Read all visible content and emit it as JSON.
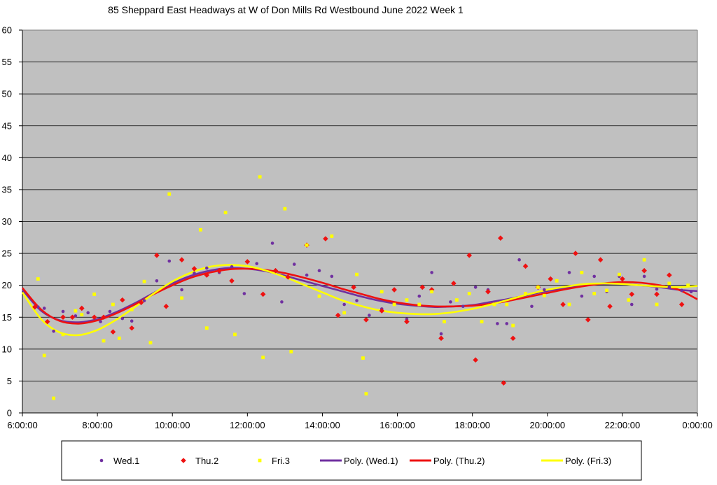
{
  "chart_data": {
    "type": "scatter",
    "title": "85 Sheppard East Headways at W of Don Mills Rd Westbound June 2022  Week 1",
    "xlabel": "",
    "ylabel": "",
    "xlim": [
      "6:00:00",
      "0:00:00"
    ],
    "ylim": [
      0,
      60
    ],
    "x_tick_labels": [
      "6:00:00",
      "8:00:00",
      "10:00:00",
      "12:00:00",
      "14:00:00",
      "16:00:00",
      "18:00:00",
      "20:00:00",
      "22:00:00",
      "0:00:00"
    ],
    "y_tick_labels": [
      "0",
      "5",
      "10",
      "15",
      "20",
      "25",
      "30",
      "35",
      "40",
      "45",
      "50",
      "55",
      "60"
    ],
    "grid": "horizontal",
    "legend_position": "bottom",
    "colors": {
      "plot_background": "#c0c0c0",
      "wed": "#7030a0",
      "thu": "#ee1111",
      "fri": "#ffff00"
    },
    "series": [
      {
        "name": "Wed.1",
        "kind": "points",
        "marker": "circle",
        "color": "#7030a0",
        "points": [
          [
            "6:25:00",
            16.6
          ],
          [
            "6:35:00",
            16.4
          ],
          [
            "6:50:00",
            12.8
          ],
          [
            "7:05:00",
            15.9
          ],
          [
            "7:25:00",
            15.2
          ],
          [
            "7:45:00",
            15.7
          ],
          [
            "8:05:00",
            14.3
          ],
          [
            "8:20:00",
            15.9
          ],
          [
            "8:40:00",
            14.8
          ],
          [
            "8:55:00",
            14.4
          ],
          [
            "9:15:00",
            17.6
          ],
          [
            "9:35:00",
            20.7
          ],
          [
            "9:55:00",
            23.8
          ],
          [
            "10:15:00",
            19.3
          ],
          [
            "10:35:00",
            21.9
          ],
          [
            "10:55:00",
            22.7
          ],
          [
            "11:15:00",
            22.0
          ],
          [
            "11:35:00",
            22.9
          ],
          [
            "11:55:00",
            18.7
          ],
          [
            "12:15:00",
            23.4
          ],
          [
            "12:40:00",
            26.6
          ],
          [
            "12:55:00",
            17.4
          ],
          [
            "13:15:00",
            23.3
          ],
          [
            "13:35:00",
            21.6
          ],
          [
            "13:55:00",
            22.3
          ],
          [
            "14:15:00",
            21.4
          ],
          [
            "14:35:00",
            17.0
          ],
          [
            "14:55:00",
            17.6
          ],
          [
            "15:15:00",
            15.3
          ],
          [
            "15:35:00",
            16.3
          ],
          [
            "15:55:00",
            17.0
          ],
          [
            "16:15:00",
            14.7
          ],
          [
            "16:35:00",
            18.3
          ],
          [
            "16:55:00",
            22.0
          ],
          [
            "17:10:00",
            12.4
          ],
          [
            "17:25:00",
            17.4
          ],
          [
            "17:45:00",
            16.7
          ],
          [
            "18:05:00",
            19.7
          ],
          [
            "18:25:00",
            19.3
          ],
          [
            "18:40:00",
            14.0
          ],
          [
            "18:55:00",
            14.0
          ],
          [
            "19:15:00",
            24.0
          ],
          [
            "19:35:00",
            16.7
          ],
          [
            "19:55:00",
            19.3
          ],
          [
            "20:15:00",
            20.7
          ],
          [
            "20:35:00",
            22.0
          ],
          [
            "20:55:00",
            18.3
          ],
          [
            "21:15:00",
            21.4
          ],
          [
            "21:35:00",
            19.0
          ],
          [
            "21:55:00",
            21.4
          ],
          [
            "22:15:00",
            17.0
          ],
          [
            "22:35:00",
            21.4
          ],
          [
            "22:55:00",
            19.4
          ],
          [
            "23:15:00",
            19.7
          ],
          [
            "23:35:00",
            19.2
          ],
          [
            "23:50:00",
            19.0
          ]
        ]
      },
      {
        "name": "Thu.2",
        "kind": "points",
        "marker": "diamond",
        "color": "#ee1111",
        "points": [
          [
            "6:20:00",
            16.6
          ],
          [
            "6:40:00",
            14.3
          ],
          [
            "7:05:00",
            15.0
          ],
          [
            "7:20:00",
            15.0
          ],
          [
            "7:35:00",
            16.4
          ],
          [
            "7:55:00",
            15.0
          ],
          [
            "8:10:00",
            15.0
          ],
          [
            "8:25:00",
            12.7
          ],
          [
            "8:40:00",
            17.7
          ],
          [
            "8:55:00",
            13.3
          ],
          [
            "9:10:00",
            17.3
          ],
          [
            "9:35:00",
            24.7
          ],
          [
            "9:50:00",
            16.7
          ],
          [
            "10:15:00",
            24.0
          ],
          [
            "10:35:00",
            22.6
          ],
          [
            "10:55:00",
            21.6
          ],
          [
            "11:15:00",
            22.3
          ],
          [
            "11:35:00",
            20.7
          ],
          [
            "12:00:00",
            23.7
          ],
          [
            "12:25:00",
            18.6
          ],
          [
            "12:45:00",
            22.3
          ],
          [
            "13:05:00",
            21.3
          ],
          [
            "13:35:00",
            26.3
          ],
          [
            "14:05:00",
            27.3
          ],
          [
            "14:25:00",
            15.3
          ],
          [
            "14:50:00",
            19.7
          ],
          [
            "15:10:00",
            14.6
          ],
          [
            "15:35:00",
            16.0
          ],
          [
            "15:55:00",
            19.3
          ],
          [
            "16:15:00",
            14.3
          ],
          [
            "16:40:00",
            19.7
          ],
          [
            "16:55:00",
            19.3
          ],
          [
            "17:10:00",
            11.7
          ],
          [
            "17:30:00",
            20.3
          ],
          [
            "17:55:00",
            24.7
          ],
          [
            "18:05:00",
            8.3
          ],
          [
            "18:25:00",
            19.0
          ],
          [
            "18:45:00",
            27.4
          ],
          [
            "18:50:00",
            4.7
          ],
          [
            "19:05:00",
            11.7
          ],
          [
            "19:25:00",
            23.0
          ],
          [
            "19:45:00",
            19.7
          ],
          [
            "20:05:00",
            21.0
          ],
          [
            "20:25:00",
            17.0
          ],
          [
            "20:45:00",
            25.0
          ],
          [
            "21:05:00",
            14.6
          ],
          [
            "21:25:00",
            24.0
          ],
          [
            "21:40:00",
            16.7
          ],
          [
            "22:00:00",
            21.0
          ],
          [
            "22:15:00",
            18.6
          ],
          [
            "22:35:00",
            22.3
          ],
          [
            "22:55:00",
            18.6
          ],
          [
            "23:15:00",
            21.6
          ],
          [
            "23:35:00",
            17.0
          ]
        ]
      },
      {
        "name": "Fri.3",
        "kind": "points",
        "marker": "square",
        "color": "#ffff00",
        "points": [
          [
            "6:25:00",
            21.0
          ],
          [
            "6:35:00",
            9.0
          ],
          [
            "6:50:00",
            2.3
          ],
          [
            "7:05:00",
            12.3
          ],
          [
            "7:25:00",
            16.0
          ],
          [
            "7:35:00",
            15.4
          ],
          [
            "7:55:00",
            18.6
          ],
          [
            "8:10:00",
            11.3
          ],
          [
            "8:25:00",
            17.0
          ],
          [
            "8:35:00",
            11.7
          ],
          [
            "8:55:00",
            16.2
          ],
          [
            "9:15:00",
            20.6
          ],
          [
            "9:25:00",
            11.0
          ],
          [
            "9:55:00",
            34.3
          ],
          [
            "10:15:00",
            18.0
          ],
          [
            "10:45:00",
            28.7
          ],
          [
            "10:55:00",
            13.3
          ],
          [
            "11:25:00",
            31.4
          ],
          [
            "11:40:00",
            12.3
          ],
          [
            "12:20:00",
            37.0
          ],
          [
            "12:25:00",
            8.7
          ],
          [
            "13:00:00",
            32.0
          ],
          [
            "13:10:00",
            9.6
          ],
          [
            "13:35:00",
            26.3
          ],
          [
            "13:55:00",
            18.3
          ],
          [
            "14:15:00",
            27.7
          ],
          [
            "14:35:00",
            15.7
          ],
          [
            "14:55:00",
            21.7
          ],
          [
            "15:05:00",
            8.6
          ],
          [
            "15:10:00",
            3.0
          ],
          [
            "15:35:00",
            19.0
          ],
          [
            "15:55:00",
            17.0
          ],
          [
            "16:15:00",
            17.7
          ],
          [
            "16:35:00",
            17.0
          ],
          [
            "16:55:00",
            19.0
          ],
          [
            "17:15:00",
            14.3
          ],
          [
            "17:35:00",
            17.7
          ],
          [
            "17:55:00",
            18.7
          ],
          [
            "18:15:00",
            14.3
          ],
          [
            "18:35:00",
            17.0
          ],
          [
            "18:55:00",
            17.0
          ],
          [
            "19:05:00",
            13.7
          ],
          [
            "19:25:00",
            18.7
          ],
          [
            "19:45:00",
            19.7
          ],
          [
            "19:55:00",
            18.4
          ],
          [
            "20:15:00",
            20.7
          ],
          [
            "20:35:00",
            17.0
          ],
          [
            "20:55:00",
            22.0
          ],
          [
            "21:15:00",
            18.7
          ],
          [
            "21:35:00",
            19.2
          ],
          [
            "21:55:00",
            21.7
          ],
          [
            "22:10:00",
            17.7
          ],
          [
            "22:35:00",
            24.0
          ],
          [
            "22:55:00",
            17.0
          ],
          [
            "23:15:00",
            20.3
          ],
          [
            "23:45:00",
            20.0
          ]
        ]
      },
      {
        "name": "Poly. (Wed.1)",
        "kind": "trendline",
        "color": "#7030a0",
        "points": [
          [
            "6:00:00",
            19.3
          ],
          [
            "6:30:00",
            16.0
          ],
          [
            "7:00:00",
            14.5
          ],
          [
            "7:30:00",
            14.2
          ],
          [
            "8:00:00",
            14.7
          ],
          [
            "8:30:00",
            15.8
          ],
          [
            "9:00:00",
            17.2
          ],
          [
            "9:30:00",
            18.8
          ],
          [
            "10:00:00",
            20.3
          ],
          [
            "10:30:00",
            21.5
          ],
          [
            "11:00:00",
            22.3
          ],
          [
            "11:30:00",
            22.7
          ],
          [
            "12:00:00",
            22.6
          ],
          [
            "12:30:00",
            22.2
          ],
          [
            "13:00:00",
            21.5
          ],
          [
            "13:30:00",
            20.7
          ],
          [
            "14:00:00",
            19.9
          ],
          [
            "14:30:00",
            19.1
          ],
          [
            "15:00:00",
            18.3
          ],
          [
            "15:30:00",
            17.6
          ],
          [
            "16:00:00",
            17.1
          ],
          [
            "16:30:00",
            16.8
          ],
          [
            "17:00:00",
            16.6
          ],
          [
            "17:30:00",
            16.7
          ],
          [
            "18:00:00",
            16.9
          ],
          [
            "18:30:00",
            17.4
          ],
          [
            "19:00:00",
            17.9
          ],
          [
            "19:30:00",
            18.5
          ],
          [
            "20:00:00",
            19.1
          ],
          [
            "20:30:00",
            19.6
          ],
          [
            "21:00:00",
            20.0
          ],
          [
            "21:30:00",
            20.2
          ],
          [
            "22:00:00",
            20.2
          ],
          [
            "22:30:00",
            20.0
          ],
          [
            "23:00:00",
            19.7
          ],
          [
            "23:30:00",
            19.3
          ],
          [
            "0:00:00",
            19.1
          ]
        ]
      },
      {
        "name": "Poly. (Thu.2)",
        "kind": "trendline",
        "color": "#ee1111",
        "points": [
          [
            "6:00:00",
            19.6
          ],
          [
            "6:30:00",
            16.2
          ],
          [
            "7:00:00",
            14.4
          ],
          [
            "7:30:00",
            14.0
          ],
          [
            "8:00:00",
            14.5
          ],
          [
            "8:30:00",
            15.6
          ],
          [
            "9:00:00",
            17.0
          ],
          [
            "9:30:00",
            18.6
          ],
          [
            "10:00:00",
            20.0
          ],
          [
            "10:30:00",
            21.2
          ],
          [
            "11:00:00",
            22.0
          ],
          [
            "11:30:00",
            22.5
          ],
          [
            "12:00:00",
            22.6
          ],
          [
            "12:30:00",
            22.4
          ],
          [
            "13:00:00",
            21.9
          ],
          [
            "13:30:00",
            21.2
          ],
          [
            "14:00:00",
            20.4
          ],
          [
            "14:30:00",
            19.5
          ],
          [
            "15:00:00",
            18.7
          ],
          [
            "15:30:00",
            17.9
          ],
          [
            "16:00:00",
            17.3
          ],
          [
            "16:30:00",
            16.9
          ],
          [
            "17:00:00",
            16.7
          ],
          [
            "17:30:00",
            16.7
          ],
          [
            "18:00:00",
            16.8
          ],
          [
            "18:30:00",
            17.1
          ],
          [
            "19:00:00",
            17.6
          ],
          [
            "19:30:00",
            18.2
          ],
          [
            "20:00:00",
            18.8
          ],
          [
            "20:30:00",
            19.4
          ],
          [
            "21:00:00",
            19.9
          ],
          [
            "21:30:00",
            20.3
          ],
          [
            "22:00:00",
            20.5
          ],
          [
            "22:30:00",
            20.4
          ],
          [
            "23:00:00",
            20.0
          ],
          [
            "23:30:00",
            19.3
          ],
          [
            "0:00:00",
            17.8
          ]
        ]
      },
      {
        "name": "Poly. (Fri.3)",
        "kind": "trendline",
        "color": "#ffff00",
        "points": [
          [
            "6:00:00",
            18.9
          ],
          [
            "6:30:00",
            14.7
          ],
          [
            "7:00:00",
            12.6
          ],
          [
            "7:30:00",
            12.2
          ],
          [
            "8:00:00",
            13.0
          ],
          [
            "8:30:00",
            14.6
          ],
          [
            "9:00:00",
            16.6
          ],
          [
            "9:30:00",
            18.7
          ],
          [
            "10:00:00",
            20.6
          ],
          [
            "10:30:00",
            22.0
          ],
          [
            "11:00:00",
            22.9
          ],
          [
            "11:30:00",
            23.2
          ],
          [
            "12:00:00",
            23.0
          ],
          [
            "12:30:00",
            22.3
          ],
          [
            "13:00:00",
            21.3
          ],
          [
            "13:30:00",
            20.1
          ],
          [
            "14:00:00",
            18.9
          ],
          [
            "14:30:00",
            17.7
          ],
          [
            "15:00:00",
            16.8
          ],
          [
            "15:30:00",
            16.1
          ],
          [
            "16:00:00",
            15.7
          ],
          [
            "16:30:00",
            15.5
          ],
          [
            "17:00:00",
            15.5
          ],
          [
            "17:30:00",
            15.8
          ],
          [
            "18:00:00",
            16.3
          ],
          [
            "18:30:00",
            17.0
          ],
          [
            "19:00:00",
            17.8
          ],
          [
            "19:30:00",
            18.6
          ],
          [
            "20:00:00",
            19.3
          ],
          [
            "20:30:00",
            19.8
          ],
          [
            "21:00:00",
            20.2
          ],
          [
            "21:30:00",
            20.3
          ],
          [
            "22:00:00",
            20.2
          ],
          [
            "22:30:00",
            20.0
          ],
          [
            "23:00:00",
            19.8
          ],
          [
            "23:30:00",
            19.7
          ],
          [
            "0:00:00",
            19.9
          ]
        ]
      }
    ]
  }
}
